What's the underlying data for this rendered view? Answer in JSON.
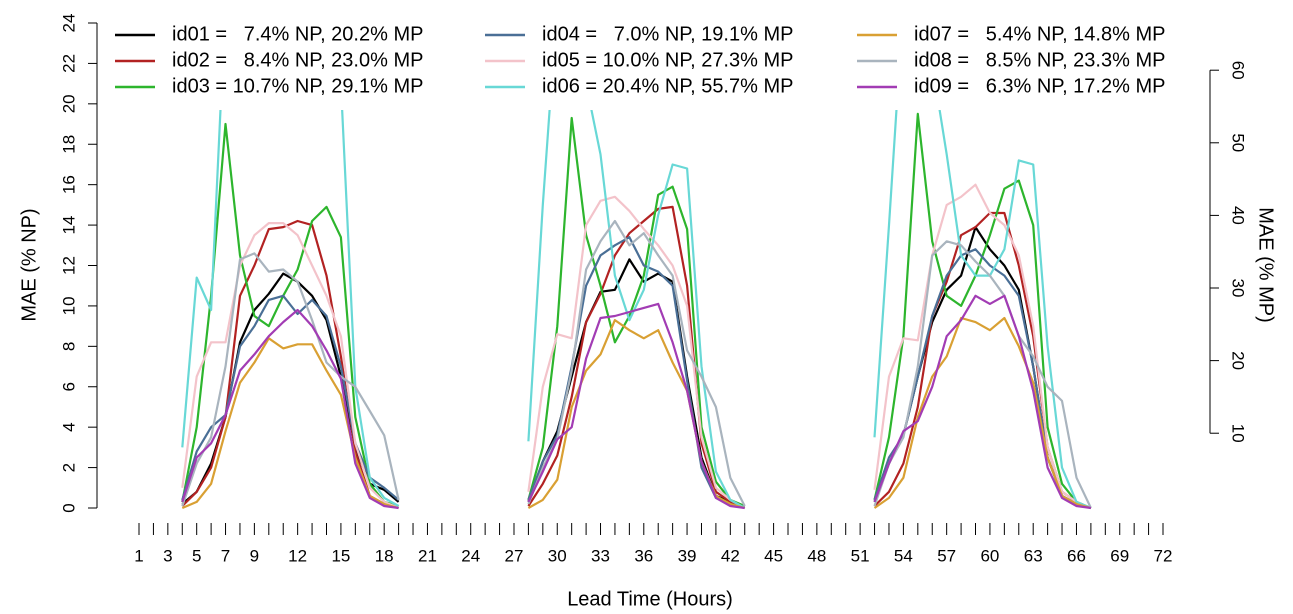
{
  "chart_data": {
    "type": "line",
    "xlabel": "Lead Time (Hours)",
    "ylabel": "MAE (% NP)",
    "y2label": "MAE (% MP)",
    "xlim": [
      1,
      72
    ],
    "ylim": [
      0,
      24
    ],
    "y2lim": [
      -0.3,
      66.5
    ],
    "xticks": [
      1,
      3,
      5,
      7,
      9,
      12,
      15,
      18,
      21,
      24,
      27,
      30,
      33,
      36,
      39,
      42,
      45,
      48,
      51,
      54,
      57,
      60,
      63,
      66,
      69,
      72
    ],
    "xminorticks": [
      1,
      2,
      3,
      4,
      5,
      6,
      7,
      8,
      9,
      10,
      11,
      12,
      13,
      14,
      15,
      16,
      17,
      18,
      19,
      20,
      21,
      22,
      23,
      24,
      25,
      26,
      27,
      28,
      29,
      30,
      31,
      32,
      33,
      34,
      35,
      36,
      37,
      38,
      39,
      40,
      41,
      42,
      43,
      44,
      45,
      46,
      47,
      48,
      49,
      50,
      51,
      52,
      53,
      54,
      55,
      56,
      57,
      58,
      59,
      60,
      61,
      62,
      63,
      64,
      65,
      66,
      67,
      68,
      69,
      70,
      71,
      72
    ],
    "yticks": [
      0,
      2,
      4,
      6,
      8,
      10,
      12,
      14,
      16,
      18,
      20,
      22,
      24
    ],
    "y2ticks": [
      10,
      20,
      30,
      40,
      50,
      60
    ],
    "x": [
      4,
      5,
      6,
      7,
      8,
      9,
      10,
      11,
      12,
      13,
      14,
      15,
      16,
      17,
      18,
      19,
      20,
      28,
      29,
      30,
      31,
      32,
      33,
      34,
      35,
      36,
      37,
      38,
      39,
      40,
      41,
      42,
      43,
      44,
      52,
      53,
      54,
      55,
      56,
      57,
      58,
      59,
      60,
      61,
      62,
      63,
      64,
      65,
      66,
      67
    ],
    "series": [
      {
        "name": "id01 =   7.4% NP, 20.2% MP",
        "color": "#000000",
        "values": [
          0.2,
          0.8,
          2.2,
          4.5,
          8.2,
          9.8,
          10.6,
          11.6,
          11.2,
          10.5,
          9.3,
          6.5,
          3.0,
          1.2,
          0.9,
          0.3,
          null,
          0.3,
          2.3,
          3.8,
          6.5,
          9.2,
          10.7,
          10.8,
          12.3,
          11.2,
          11.6,
          11.2,
          6.5,
          2.5,
          0.6,
          0.3,
          0.1,
          null,
          0.3,
          2.2,
          3.6,
          6.5,
          9.2,
          10.8,
          11.5,
          13.9,
          12.8,
          12.0,
          10.8,
          7.0,
          2.5,
          0.6,
          0.2,
          0.0
        ]
      },
      {
        "name": "id02 =   8.4% NP, 23.0% MP",
        "color": "#b22222",
        "values": [
          0.1,
          0.8,
          2.0,
          4.5,
          10.5,
          12.0,
          13.8,
          13.9,
          14.2,
          14.0,
          11.5,
          7.5,
          2.8,
          0.6,
          0.2,
          0.0,
          null,
          0.1,
          1.2,
          2.6,
          5.5,
          9.2,
          10.6,
          12.5,
          13.6,
          14.2,
          14.8,
          14.9,
          11.0,
          3.2,
          0.8,
          0.3,
          0.0,
          null,
          0.1,
          0.8,
          2.2,
          5.0,
          9.5,
          11.2,
          13.5,
          13.9,
          14.6,
          14.6,
          12.0,
          8.5,
          3.0,
          0.8,
          0.3,
          0.0
        ]
      },
      {
        "name": "id03 = 10.7% NP, 29.1% MP",
        "color": "#2db52d",
        "values": [
          0.3,
          4.0,
          10.5,
          19.0,
          12.5,
          9.5,
          9.0,
          10.5,
          11.8,
          14.2,
          14.9,
          13.4,
          4.5,
          1.2,
          0.3,
          0.1,
          null,
          0.4,
          3.0,
          9.0,
          19.3,
          13.5,
          11.0,
          8.2,
          9.5,
          11.5,
          15.5,
          15.9,
          13.8,
          4.0,
          1.3,
          0.4,
          0.1,
          null,
          0.4,
          3.5,
          8.5,
          19.5,
          13.2,
          10.5,
          10.0,
          11.5,
          13.5,
          15.8,
          16.2,
          14.0,
          4.0,
          1.2,
          0.3,
          0.0
        ]
      },
      {
        "name": "id04 =   7.0% NP, 19.1% MP",
        "color": "#4a6f96",
        "values": [
          0.4,
          2.8,
          4.0,
          4.6,
          8.0,
          9.0,
          10.3,
          10.5,
          9.6,
          10.3,
          9.5,
          7.0,
          3.2,
          1.5,
          1.0,
          0.4,
          null,
          0.4,
          2.3,
          3.6,
          7.0,
          11.0,
          12.5,
          13.0,
          13.4,
          12.0,
          11.7,
          11.0,
          6.3,
          2.0,
          0.5,
          0.2,
          0.0,
          null,
          0.4,
          2.5,
          3.6,
          6.5,
          9.5,
          11.5,
          12.5,
          12.8,
          12.0,
          11.5,
          10.5,
          7.0,
          2.5,
          0.6,
          0.2,
          0.0
        ]
      },
      {
        "name": "id05 = 10.0% NP, 27.3% MP",
        "color": "#f3c3ca",
        "values": [
          1.0,
          6.5,
          8.2,
          8.2,
          12.0,
          13.5,
          14.1,
          14.1,
          13.5,
          12.0,
          10.5,
          8.5,
          3.2,
          1.0,
          0.3,
          0.0,
          null,
          0.8,
          6.0,
          8.6,
          8.4,
          14.0,
          15.2,
          15.4,
          14.7,
          13.8,
          13.0,
          12.0,
          10.0,
          3.5,
          1.0,
          0.4,
          0.0,
          null,
          0.9,
          6.5,
          8.4,
          8.3,
          12.5,
          15.0,
          15.4,
          16.0,
          14.6,
          14.0,
          12.5,
          9.0,
          3.0,
          0.8,
          0.3,
          0.0
        ]
      },
      {
        "name": "id06 = 20.4% NP, 55.7% MP",
        "color": "#68d8d6",
        "values": [
          3.0,
          11.4,
          9.8,
          25.0,
          28.0,
          30.0,
          31.0,
          31.0,
          30.0,
          29.0,
          27.0,
          21.0,
          6.0,
          1.5,
          0.5,
          0.1,
          null,
          3.3,
          15.0,
          25.0,
          28.0,
          21.0,
          17.5,
          11.5,
          9.3,
          10.8,
          14.5,
          17.0,
          16.8,
          7.0,
          1.8,
          0.4,
          0.0,
          null,
          3.5,
          14.0,
          25.0,
          28.0,
          22.0,
          17.5,
          12.5,
          11.5,
          11.5,
          12.8,
          17.2,
          17.0,
          8.0,
          2.0,
          0.3,
          0.0
        ]
      },
      {
        "name": "id07 =   5.4% NP, 14.8% MP",
        "color": "#d9a033",
        "values": [
          0.0,
          0.3,
          1.2,
          3.8,
          6.2,
          7.2,
          8.4,
          7.9,
          8.1,
          8.1,
          6.8,
          5.6,
          2.5,
          0.6,
          0.2,
          0.0,
          null,
          0.0,
          0.4,
          1.4,
          5.0,
          6.8,
          7.6,
          9.3,
          8.8,
          8.4,
          8.8,
          7.2,
          5.8,
          2.3,
          0.6,
          0.2,
          0.0,
          null,
          0.0,
          0.5,
          1.5,
          4.5,
          6.5,
          7.5,
          9.4,
          9.2,
          8.8,
          9.4,
          8.0,
          6.2,
          2.5,
          0.6,
          0.2,
          0.0
        ]
      },
      {
        "name": "id08 =   8.5% NP, 23.3% MP",
        "color": "#a9b4be",
        "values": [
          0.1,
          2.2,
          3.5,
          7.0,
          12.3,
          12.6,
          11.7,
          11.8,
          11.2,
          9.3,
          7.2,
          6.5,
          6.0,
          4.8,
          3.6,
          0.4,
          null,
          0.2,
          2.0,
          3.4,
          6.8,
          11.8,
          13.2,
          14.2,
          13.0,
          13.6,
          12.5,
          11.5,
          7.8,
          6.5,
          5.0,
          1.5,
          0.1,
          null,
          0.1,
          2.2,
          3.5,
          7.0,
          12.5,
          13.2,
          13.0,
          12.2,
          11.5,
          10.5,
          8.5,
          7.5,
          6.0,
          5.3,
          1.5,
          0.0
        ]
      },
      {
        "name": "id09 =   6.3% NP, 17.2% MP",
        "color": "#a23cb4",
        "values": [
          0.3,
          2.5,
          3.2,
          4.6,
          6.8,
          7.6,
          8.5,
          9.2,
          9.8,
          9.0,
          7.8,
          6.4,
          2.2,
          0.5,
          0.1,
          0.0,
          null,
          0.3,
          1.8,
          3.4,
          4.0,
          7.4,
          9.4,
          9.5,
          9.7,
          9.9,
          10.1,
          8.2,
          5.8,
          2.3,
          0.5,
          0.1,
          0.0,
          null,
          0.3,
          2.2,
          3.8,
          4.3,
          6.0,
          8.5,
          9.3,
          10.5,
          10.1,
          10.5,
          8.5,
          5.8,
          2.0,
          0.5,
          0.1,
          0.0
        ]
      }
    ]
  }
}
